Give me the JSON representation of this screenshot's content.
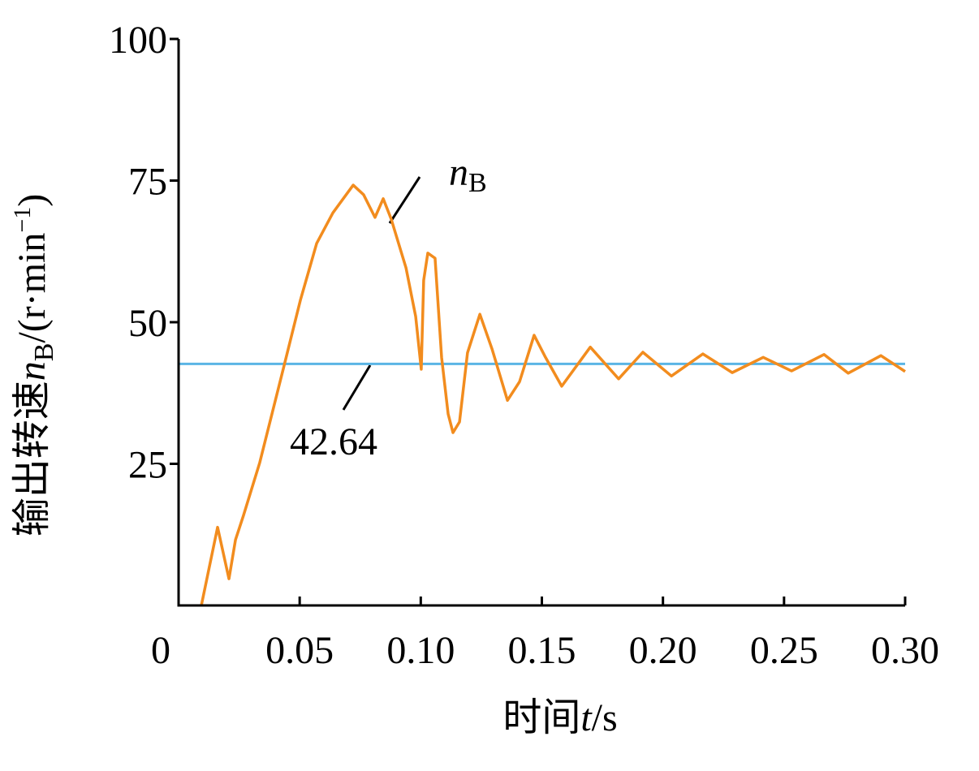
{
  "chart_data": {
    "type": "line",
    "x_label": [
      "时间",
      "t",
      "/s"
    ],
    "y_label": [
      "输出转速",
      "n",
      "B",
      "/(r·min",
      "−1",
      ")"
    ],
    "x": [
      0.0094,
      0.0161,
      0.0208,
      0.0235,
      0.0268,
      0.0335,
      0.0436,
      0.0503,
      0.057,
      0.0637,
      0.0721,
      0.0764,
      0.0811,
      0.0845,
      0.0878,
      0.0939,
      0.0979,
      0.1002,
      0.1012,
      0.1029,
      0.1059,
      0.1086,
      0.1113,
      0.1133,
      0.116,
      0.1193,
      0.1244,
      0.1294,
      0.1358,
      0.1408,
      0.1468,
      0.1515,
      0.1582,
      0.17,
      0.1817,
      0.1917,
      0.2035,
      0.2165,
      0.2286,
      0.2414,
      0.2531,
      0.2665,
      0.2765,
      0.29,
      0.3
    ],
    "series": [
      {
        "name": [
          "n",
          "B"
        ],
        "color": "#f28c1e",
        "values": [
          0,
          13.8,
          4.7,
          11.6,
          15.9,
          25.2,
          42.4,
          53.9,
          63.9,
          69.3,
          74.2,
          72.5,
          68.5,
          71.8,
          68.2,
          59.6,
          51.0,
          41.7,
          57.4,
          62.2,
          61.3,
          43.8,
          33.8,
          30.5,
          32.4,
          44.6,
          51.4,
          45.3,
          36.2,
          39.5,
          47.7,
          43.8,
          38.7,
          45.6,
          40.0,
          44.7,
          40.5,
          44.4,
          41.1,
          43.8,
          41.4,
          44.3,
          41.0,
          44.1,
          41.3
        ]
      }
    ],
    "reference_line": {
      "value": 42.64,
      "color": "#5ab4e5",
      "label_color": "#0000dd"
    },
    "xlim": [
      0,
      0.3
    ],
    "xticks": [
      0,
      0.05,
      {
        "value": 0.1,
        "label": "0.10"
      },
      0.15,
      {
        "value": 0.2,
        "label": "0.20"
      },
      0.25,
      {
        "value": 0.3,
        "label": "0.30"
      }
    ],
    "ylim": [
      0,
      100
    ],
    "yticks": [
      25,
      50,
      75,
      100
    ]
  }
}
